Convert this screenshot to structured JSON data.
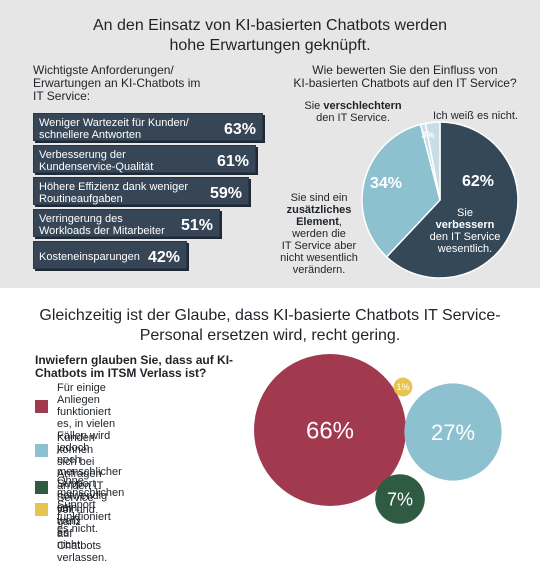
{
  "header": {
    "title_line1": "An den Einsatz von KI-basierten Chatbots werden",
    "title_line2": "hohe Erwartungen geknüpft."
  },
  "bars_question": {
    "line1": "Wichtigste Anforderungen/",
    "line2": "Erwartungen an KI-Chatbots im",
    "line3": "IT Service:"
  },
  "pie_question": {
    "line1": "Wie bewerten Sie den Einfluss von",
    "line2": "KI-basierten Chatbots auf den IT Service?"
  },
  "bottom_title": {
    "line1": "Gleichzeitig ist der Glaube, dass KI-basierte Chatbots IT Service-",
    "line2": "Personal ersetzen wird, recht gering."
  },
  "bubble_question": {
    "line1": "Inwiefern glauben Sie, dass auf KI-",
    "line2": "Chatbots im ITSM Verlass ist?"
  },
  "pie_labels": {
    "worse_pre": "Sie ",
    "worse_bold": "verschlechtern",
    "worse_post": "den IT Service.",
    "dontknow": "Ich weiß es nicht.",
    "extra_l1": "Sie sind ein",
    "extra_bold1": "zusätzliches",
    "extra_bold2": "Element",
    "extra_l3": ",",
    "extra_l4": "werden die",
    "extra_l5": "IT Service aber",
    "extra_l6": "nicht wesentlich",
    "extra_l7": "verändern.",
    "better_l1": "Sie",
    "better_bold": "verbessern",
    "better_l3": "den IT Service",
    "better_l4": "wesentlich."
  },
  "legend": [
    {
      "l1": "Für einige Anliegen funktioniert",
      "l2": "es, in vielen Fällen wird jedoch",
      "l3": "noch menschlicher Support",
      "l4": "notwendig sein."
    },
    {
      "l1": "Kunden können sich bei Anfragen",
      "l2": "an den IT Service voll und ganz",
      "l3": "auf Chatbots verlassen.",
      "l4": ""
    },
    {
      "l1": "Ohne menschlichen Support",
      "l2": "funktioniert es nicht.",
      "l3": "",
      "l4": ""
    },
    {
      "l1": "Ich weiß es nicht.",
      "l2": "",
      "l3": "",
      "l4": ""
    }
  ],
  "chart_data": [
    {
      "type": "bar",
      "categories": [
        "Weniger Wartezeit für Kunden/ schnellere Antworten",
        "Verbesserung der Kundenservice-Qualität",
        "Höhere Effizienz dank weniger Routineaufgaben",
        "Verringerung des Workloads der Mitarbeiter",
        "Kosteneinsparungen"
      ],
      "label_lines": [
        [
          "Weniger Wartezeit für Kunden/",
          "schnellere Antworten"
        ],
        [
          "Verbesserung der",
          "Kundenservice-Qualität"
        ],
        [
          "Höhere Effizienz dank weniger",
          "Routineaufgaben"
        ],
        [
          "Verringerung des",
          "Workloads der Mitarbeiter"
        ],
        [
          "Kosteneinsparungen"
        ]
      ],
      "values": [
        63,
        61,
        59,
        51,
        42
      ],
      "value_labels": [
        "63%",
        "61%",
        "59%",
        "51%",
        "42%"
      ],
      "color": "#364656"
    },
    {
      "type": "pie",
      "categories": [
        "verbessern wesentlich",
        "zusätzliches Element",
        "verschlechtern",
        "Ich weiß es nicht."
      ],
      "values": [
        62,
        34,
        1,
        3
      ],
      "value_labels": [
        "62%",
        "34%",
        "",
        "3%"
      ],
      "colors": [
        "#354858",
        "#8ec1cf",
        "#c9dde6",
        "#c9dde6"
      ]
    },
    {
      "type": "scatter",
      "categories": [
        "teilweise",
        "voll und ganz",
        "nicht ohne Support",
        "weiß nicht"
      ],
      "values": [
        66,
        27,
        7,
        1
      ],
      "value_labels": [
        "66%",
        "27%",
        "7%",
        "1%"
      ],
      "colors": [
        "#a23a4f",
        "#8ec1cf",
        "#2f5b43",
        "#e7c451"
      ]
    }
  ],
  "colors": {
    "top_bg": "#e6e6e6",
    "bar": "#364656",
    "bubble_red": "#a23a4f",
    "bubble_blue": "#8ec1cf",
    "bubble_green": "#2f5b43",
    "bubble_yellow": "#e7c451"
  }
}
